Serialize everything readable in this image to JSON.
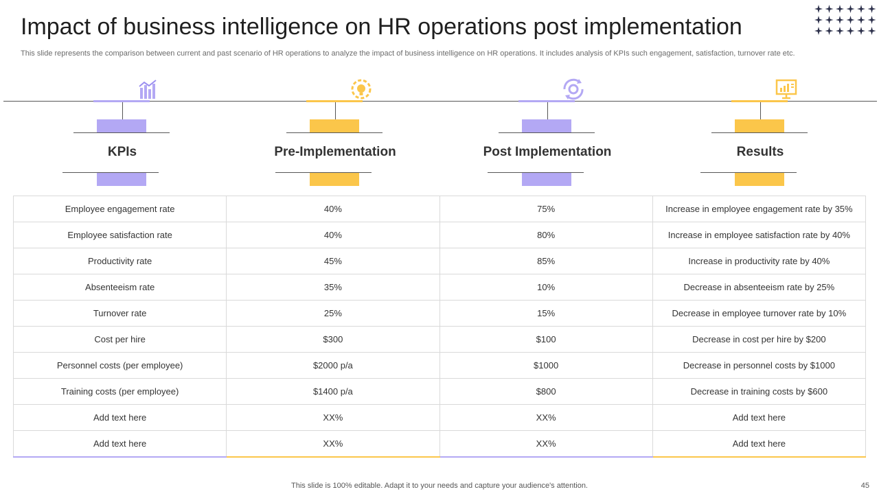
{
  "slide": {
    "title": "Impact of business intelligence on HR operations post implementation",
    "subtitle": "This slide represents the comparison between current and past scenario of HR operations to analyze the impact of business intelligence on HR operations. It includes analysis of KPIs such engagement, satisfaction, turnover rate etc.",
    "footer": "This slide is 100% editable. Adapt it to your needs and capture your audience's attention.",
    "page_number": "45"
  },
  "colors": {
    "purple": "#b3a8f4",
    "yellow": "#fbc64a"
  },
  "columns": [
    {
      "label": "KPIs",
      "icon": "chart-bars-icon",
      "accent": "purple"
    },
    {
      "label": "Pre-Implementation",
      "icon": "idea-gear-icon",
      "accent": "yellow"
    },
    {
      "label": "Post Implementation",
      "icon": "cycle-gear-icon",
      "accent": "purple"
    },
    {
      "label": "Results",
      "icon": "presentation-board-icon",
      "accent": "yellow"
    }
  ],
  "rows": [
    [
      "Employee engagement rate",
      "40%",
      "75%",
      "Increase in employee engagement rate by 35%"
    ],
    [
      "Employee satisfaction rate",
      "40%",
      "80%",
      "Increase in employee satisfaction rate by 40%"
    ],
    [
      "Productivity rate",
      "45%",
      "85%",
      "Increase in productivity rate by 40%"
    ],
    [
      "Absenteeism rate",
      "35%",
      "10%",
      "Decrease in absenteeism rate by 25%"
    ],
    [
      "Turnover  rate",
      "25%",
      "15%",
      "Decrease in employee turnover rate by 10%"
    ],
    [
      "Cost per hire",
      "$300",
      "$100",
      "Decrease in cost per hire by $200"
    ],
    [
      "Personnel costs (per employee)",
      "$2000 p/a",
      "$1000",
      "Decrease in personnel costs by $1000"
    ],
    [
      "Training  costs (per employee)",
      "$1400 p/a",
      "$800",
      "Decrease in training costs by $600"
    ],
    [
      "Add text here",
      "XX%",
      "XX%",
      "Add text here"
    ],
    [
      "Add text here",
      "XX%",
      "XX%",
      "Add text here"
    ]
  ]
}
